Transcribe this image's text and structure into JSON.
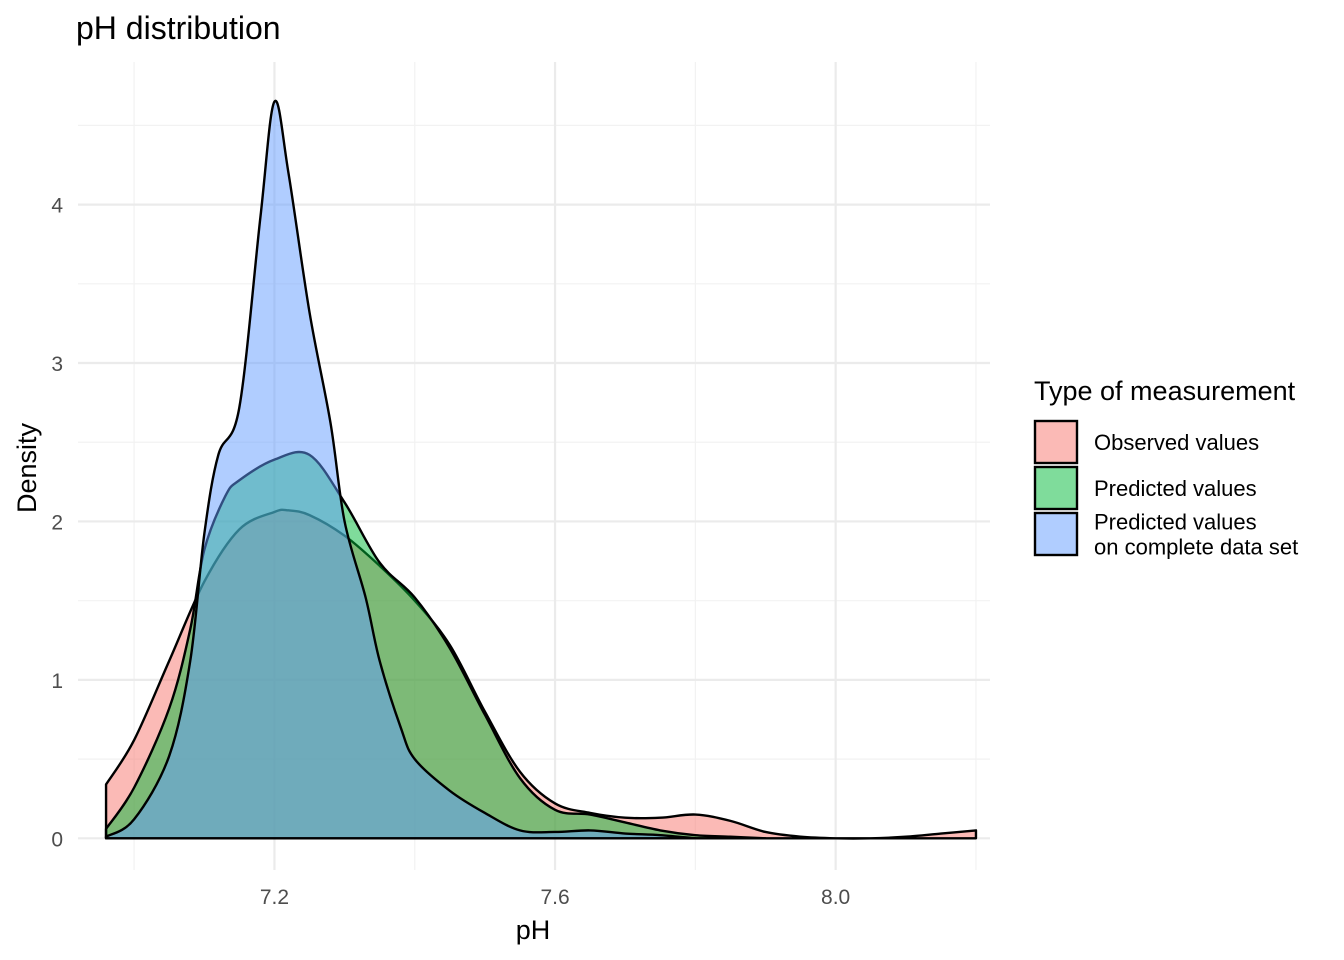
{
  "chart_data": {
    "type": "area",
    "title": "pH distribution",
    "xlabel": "pH",
    "ylabel": "Density",
    "xlim": [
      6.92,
      8.22
    ],
    "ylim": [
      -0.2,
      4.9
    ],
    "x_ticks": [
      7.2,
      7.6,
      8.0
    ],
    "x_tick_labels": [
      "7.2",
      "7.6",
      "8.0"
    ],
    "y_ticks": [
      0,
      1,
      2,
      3,
      4
    ],
    "y_tick_labels": [
      "0",
      "1",
      "2",
      "3",
      "4"
    ],
    "grid": true,
    "legend": {
      "title": "Type of measurement",
      "position": "right",
      "entries": [
        {
          "lines": [
            "Observed values"
          ],
          "color": "#F8766D"
        },
        {
          "lines": [
            "Predicted values"
          ],
          "color": "#00BA38"
        },
        {
          "lines": [
            "Predicted values",
            "on complete data set"
          ],
          "color": "#619CFF"
        }
      ]
    },
    "fill_opacity": 0.5,
    "series": [
      {
        "name": "Observed values",
        "color": "#F8766D",
        "x": [
          6.96,
          7.0,
          7.05,
          7.1,
          7.15,
          7.2,
          7.22,
          7.25,
          7.3,
          7.35,
          7.4,
          7.45,
          7.5,
          7.55,
          7.6,
          7.65,
          7.7,
          7.75,
          7.8,
          7.85,
          7.9,
          7.95,
          8.0,
          8.05,
          8.1,
          8.15,
          8.2
        ],
        "y": [
          0.34,
          0.62,
          1.12,
          1.62,
          1.95,
          2.06,
          2.07,
          2.04,
          1.91,
          1.72,
          1.5,
          1.22,
          0.8,
          0.42,
          0.22,
          0.16,
          0.13,
          0.13,
          0.15,
          0.11,
          0.04,
          0.01,
          0.0,
          0.0,
          0.01,
          0.03,
          0.05
        ]
      },
      {
        "name": "Predicted values",
        "color": "#00BA38",
        "x": [
          6.96,
          7.0,
          7.05,
          7.08,
          7.1,
          7.13,
          7.15,
          7.2,
          7.25,
          7.3,
          7.35,
          7.4,
          7.45,
          7.5,
          7.55,
          7.6,
          7.65,
          7.7,
          7.75,
          7.8,
          7.85,
          7.9
        ],
        "y": [
          0.06,
          0.32,
          0.82,
          1.32,
          1.82,
          2.16,
          2.26,
          2.39,
          2.42,
          2.12,
          1.74,
          1.52,
          1.2,
          0.78,
          0.38,
          0.18,
          0.15,
          0.1,
          0.05,
          0.02,
          0.01,
          0.0
        ]
      },
      {
        "name": "Predicted values\non complete data set",
        "color": "#619CFF",
        "x": [
          6.96,
          7.0,
          7.05,
          7.08,
          7.1,
          7.12,
          7.15,
          7.18,
          7.2,
          7.22,
          7.25,
          7.28,
          7.3,
          7.33,
          7.35,
          7.38,
          7.4,
          7.45,
          7.5,
          7.55,
          7.6,
          7.65,
          7.7,
          7.75,
          7.8
        ],
        "y": [
          0.01,
          0.12,
          0.52,
          1.12,
          1.92,
          2.42,
          2.72,
          3.92,
          4.65,
          4.2,
          3.32,
          2.62,
          2.0,
          1.52,
          1.12,
          0.7,
          0.5,
          0.3,
          0.16,
          0.05,
          0.04,
          0.05,
          0.03,
          0.02,
          0.0
        ]
      }
    ]
  }
}
